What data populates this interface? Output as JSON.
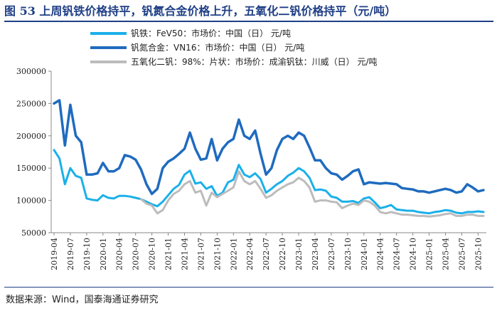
{
  "header": {
    "title": "图 53  上周钒铁价格持平，钒氮合金价格上升，五氧化二钒价格持平（元/吨）"
  },
  "footer": {
    "source": "数据来源：Wind，国泰海通证券研究"
  },
  "chart_data": {
    "type": "line",
    "title": "",
    "xlabel": "",
    "ylabel": "",
    "ylim": [
      50000,
      300000
    ],
    "yticks": [
      "300000",
      "250000",
      "200000",
      "150000",
      "100000",
      "50000"
    ],
    "yticks_values": [
      300000,
      250000,
      200000,
      150000,
      100000,
      50000
    ],
    "xticks": [
      "2019-04",
      "2019-07",
      "2019-10",
      "2020-01",
      "2020-04",
      "2020-07",
      "2020-10",
      "2021-01",
      "2021-04",
      "2021-07",
      "2021-10",
      "2022-01",
      "2022-04",
      "2022-07",
      "2022-10",
      "2023-01",
      "2023-04",
      "2023-07",
      "2023-10",
      "2024-01",
      "2024-04",
      "2024-07",
      "2024-10",
      "2025-01",
      "2025-04",
      "2025-07",
      "2025-10"
    ],
    "grid": false,
    "legend_position": "top-left",
    "x": [
      "2019-04",
      "2019-05",
      "2019-06",
      "2019-07",
      "2019-08",
      "2019-09",
      "2019-10",
      "2019-11",
      "2019-12",
      "2020-01",
      "2020-02",
      "2020-03",
      "2020-04",
      "2020-05",
      "2020-06",
      "2020-07",
      "2020-08",
      "2020-09",
      "2020-10",
      "2020-11",
      "2020-12",
      "2021-01",
      "2021-02",
      "2021-03",
      "2021-04",
      "2021-05",
      "2021-06",
      "2021-07",
      "2021-08",
      "2021-09",
      "2021-10",
      "2021-11",
      "2021-12",
      "2022-01",
      "2022-02",
      "2022-03",
      "2022-04",
      "2022-05",
      "2022-06",
      "2022-07",
      "2022-08",
      "2022-09",
      "2022-10",
      "2022-11",
      "2022-12",
      "2023-01",
      "2023-02",
      "2023-03",
      "2023-04",
      "2023-05",
      "2023-06",
      "2023-07",
      "2023-08",
      "2023-09",
      "2023-10",
      "2023-11",
      "2023-12",
      "2024-01",
      "2024-02",
      "2024-03",
      "2024-04",
      "2024-05",
      "2024-06",
      "2024-07",
      "2024-08",
      "2024-09",
      "2024-10",
      "2024-11",
      "2024-12",
      "2025-01",
      "2025-02",
      "2025-03",
      "2025-04",
      "2025-05",
      "2025-06",
      "2025-07",
      "2025-08",
      "2025-09",
      "2025-10",
      "2025-11"
    ],
    "series": [
      {
        "name": "钒铁：FeV50：市场价：中国（日） 元/吨",
        "color": "#1ab0ea",
        "width": 3,
        "values": [
          178000,
          165000,
          125000,
          150000,
          138000,
          135000,
          103000,
          101000,
          100000,
          108000,
          104000,
          103000,
          107000,
          107000,
          106000,
          104000,
          102000,
          98000,
          94000,
          91000,
          98000,
          108000,
          118000,
          124000,
          140000,
          146000,
          126000,
          128000,
          118000,
          122000,
          107000,
          112000,
          128000,
          132000,
          155000,
          140000,
          136000,
          142000,
          133000,
          112000,
          118000,
          125000,
          130000,
          138000,
          143000,
          150000,
          145000,
          135000,
          116000,
          117000,
          115000,
          106000,
          104000,
          98000,
          98000,
          99000,
          96000,
          103000,
          105000,
          97000,
          88000,
          90000,
          93000,
          86000,
          85000,
          84000,
          84000,
          82000,
          81000,
          80000,
          82000,
          83000,
          85000,
          84000,
          81000,
          80000,
          82000,
          82000,
          83000,
          82000
        ]
      },
      {
        "name": "钒氮合金：VN16：市场价：中国（日） 元/吨",
        "color": "#1f6bbf",
        "width": 3.5,
        "values": [
          250000,
          255000,
          185000,
          248000,
          200000,
          190000,
          140000,
          140000,
          142000,
          158000,
          145000,
          145000,
          150000,
          170000,
          168000,
          163000,
          148000,
          125000,
          110000,
          118000,
          150000,
          160000,
          165000,
          172000,
          180000,
          205000,
          180000,
          163000,
          165000,
          195000,
          162000,
          180000,
          190000,
          195000,
          225000,
          200000,
          195000,
          208000,
          172000,
          140000,
          150000,
          178000,
          195000,
          200000,
          195000,
          205000,
          200000,
          182000,
          162000,
          162000,
          150000,
          142000,
          140000,
          132000,
          138000,
          145000,
          148000,
          125000,
          128000,
          127000,
          126000,
          127000,
          126000,
          125000,
          119000,
          118000,
          117000,
          114000,
          114000,
          112000,
          114000,
          116000,
          118000,
          116000,
          112000,
          114000,
          125000,
          120000,
          114000,
          116000
        ]
      },
      {
        "name": "五氧化二钒：98%：片状：市场价：成渝钒钛：川威（日） 元/吨",
        "color": "#bcbcbc",
        "width": 3,
        "values": [
          null,
          null,
          null,
          null,
          null,
          null,
          null,
          null,
          null,
          null,
          null,
          null,
          null,
          null,
          null,
          null,
          102000,
          95000,
          92000,
          80000,
          85000,
          100000,
          110000,
          115000,
          125000,
          130000,
          112000,
          115000,
          92000,
          112000,
          105000,
          110000,
          115000,
          120000,
          145000,
          130000,
          125000,
          130000,
          118000,
          104000,
          108000,
          115000,
          120000,
          125000,
          128000,
          135000,
          130000,
          120000,
          98000,
          100000,
          100000,
          98000,
          97000,
          88000,
          92000,
          95000,
          93000,
          100000,
          98000,
          92000,
          82000,
          80000,
          82000,
          80000,
          78000,
          78000,
          77000,
          76000,
          76000,
          75000,
          76000,
          77000,
          79000,
          80000,
          76000,
          76000,
          78000,
          78000,
          76000,
          76000
        ]
      }
    ]
  }
}
